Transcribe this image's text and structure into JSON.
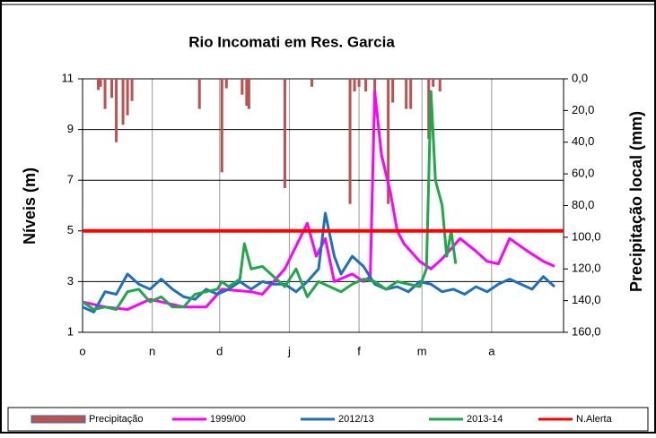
{
  "chart_data": {
    "type": "combo",
    "title": "Rio Incomati em Res. Garcia",
    "ylabel": "Níveis (m)",
    "y2label": "Precipitação local (mm)",
    "xlim": [
      0,
      214
    ],
    "xticks": [
      {
        "value": 0,
        "label": "o"
      },
      {
        "value": 31,
        "label": "n"
      },
      {
        "value": 61,
        "label": "d"
      },
      {
        "value": 92,
        "label": "j"
      },
      {
        "value": 123,
        "label": "f"
      },
      {
        "value": 151,
        "label": "m"
      },
      {
        "value": 182,
        "label": "a"
      }
    ],
    "ylim": [
      1,
      11
    ],
    "yticks": [
      1,
      3,
      5,
      7,
      9,
      11
    ],
    "y2lim": [
      160,
      0
    ],
    "y2ticks": [
      {
        "value": 0,
        "label": "0,0"
      },
      {
        "value": 20,
        "label": "20,0"
      },
      {
        "value": 40,
        "label": "40,0"
      },
      {
        "value": 60,
        "label": "60,0"
      },
      {
        "value": 80,
        "label": "80,0"
      },
      {
        "value": 100,
        "label": "100,0"
      },
      {
        "value": 120,
        "label": "120,0"
      },
      {
        "value": 140,
        "label": "140,0"
      },
      {
        "value": 160,
        "label": "160,0"
      }
    ],
    "grid": true,
    "legend": "bottom",
    "series": [
      {
        "name": "Precipitação",
        "type": "bar",
        "axis": "y2",
        "color": "#c0504d",
        "x": [
          7,
          8,
          10,
          13,
          15,
          18,
          20,
          22,
          52,
          62,
          64,
          71,
          73,
          74,
          90,
          102,
          119,
          121,
          123,
          126,
          130,
          136,
          138,
          144,
          146,
          154,
          156,
          159
        ],
        "values": [
          7,
          5,
          19,
          12,
          40,
          29,
          23,
          14,
          19,
          59,
          6,
          10,
          17,
          19,
          69,
          5,
          79,
          8,
          5,
          8,
          11,
          79,
          15,
          19,
          19,
          38,
          5,
          8
        ]
      },
      {
        "name": "1999/00",
        "type": "line",
        "color": "#ff00ff",
        "x": [
          0,
          10,
          20,
          30,
          45,
          55,
          62,
          75,
          80,
          90,
          100,
          104,
          108,
          112,
          120,
          125,
          128,
          130,
          133,
          137,
          140,
          143,
          150,
          155,
          160,
          168,
          175,
          180,
          185,
          190,
          198,
          205,
          210
        ],
        "values": [
          2.2,
          2.0,
          1.9,
          2.3,
          2.0,
          2.0,
          2.7,
          2.6,
          2.5,
          3.5,
          5.3,
          4.0,
          4.7,
          3.0,
          3.3,
          3.0,
          3.2,
          10.5,
          8.0,
          6.5,
          5.0,
          4.5,
          3.8,
          3.5,
          3.9,
          4.7,
          4.2,
          3.8,
          3.7,
          4.7,
          4.2,
          3.8,
          3.6
        ]
      },
      {
        "name": "2012/13",
        "type": "line",
        "color": "#1f6fbf",
        "x": [
          0,
          5,
          10,
          15,
          20,
          25,
          30,
          35,
          40,
          45,
          50,
          55,
          60,
          65,
          70,
          75,
          80,
          85,
          90,
          95,
          100,
          105,
          108,
          112,
          115,
          120,
          125,
          130,
          135,
          140,
          145,
          150,
          155,
          160,
          165,
          170,
          175,
          180,
          185,
          190,
          195,
          200,
          205,
          210
        ],
        "values": [
          2.0,
          1.8,
          2.6,
          2.5,
          3.3,
          2.9,
          2.7,
          3.1,
          2.7,
          2.4,
          2.3,
          2.7,
          2.5,
          2.7,
          3.0,
          2.7,
          3.0,
          2.9,
          2.9,
          2.6,
          3.0,
          3.5,
          5.7,
          4.0,
          3.3,
          4.0,
          3.6,
          2.9,
          2.7,
          2.8,
          2.6,
          3.0,
          2.9,
          2.6,
          2.7,
          2.5,
          2.8,
          2.6,
          2.9,
          3.1,
          2.9,
          2.7,
          3.2,
          2.8
        ]
      },
      {
        "name": "2013-14",
        "type": "line",
        "color": "#1fa84a",
        "x": [
          0,
          5,
          10,
          15,
          20,
          25,
          30,
          35,
          40,
          45,
          50,
          55,
          60,
          62,
          65,
          70,
          72,
          75,
          80,
          85,
          90,
          95,
          100,
          105,
          110,
          115,
          120,
          125,
          130,
          135,
          140,
          145,
          150,
          153,
          155,
          157,
          160,
          162,
          164,
          166
        ],
        "values": [
          2.2,
          1.9,
          2.0,
          1.9,
          2.6,
          2.7,
          2.2,
          2.4,
          2.0,
          2.0,
          2.5,
          2.6,
          2.7,
          3.0,
          2.8,
          3.1,
          4.5,
          3.5,
          3.6,
          3.2,
          2.8,
          3.5,
          2.4,
          3.0,
          2.8,
          2.6,
          2.9,
          3.1,
          3.0,
          2.7,
          3.0,
          2.9,
          2.8,
          3.5,
          10.5,
          7.0,
          6.0,
          4.0,
          5.0,
          3.7
        ]
      },
      {
        "name": "N.Alerta",
        "type": "line",
        "color": "#ff0000",
        "x": [
          0,
          214
        ],
        "values": [
          5,
          5
        ]
      }
    ]
  }
}
